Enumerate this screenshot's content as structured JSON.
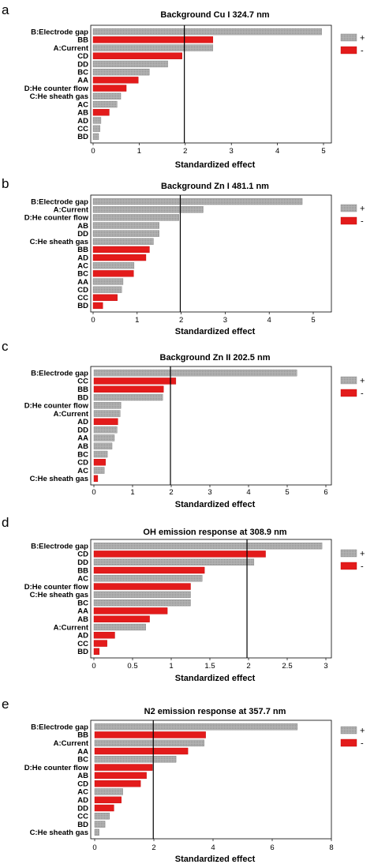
{
  "colors": {
    "positive": "#a9a9a9",
    "negative": "#e31b1b",
    "frame": "#000000"
  },
  "chart_data": [
    {
      "type": "bar",
      "panel_letter": "a",
      "title": "Background Cu I 324.7 nm",
      "xlabel": "Standardized effect",
      "xlim": [
        0,
        5
      ],
      "xticks": [
        0,
        1,
        2,
        3,
        4,
        5
      ],
      "reference_line": 1.98,
      "legend": [
        "+",
        "-"
      ],
      "bars": [
        {
          "label": "B:Electrode gap",
          "value": 4.96,
          "sign": "+"
        },
        {
          "label": "BB",
          "value": 2.6,
          "sign": "-"
        },
        {
          "label": "A:Current",
          "value": 2.6,
          "sign": "+"
        },
        {
          "label": "CD",
          "value": 1.93,
          "sign": "-"
        },
        {
          "label": "DD",
          "value": 1.62,
          "sign": "+"
        },
        {
          "label": "BC",
          "value": 1.22,
          "sign": "+"
        },
        {
          "label": "AA",
          "value": 0.98,
          "sign": "-"
        },
        {
          "label": "D:He counter flow",
          "value": 0.72,
          "sign": "-"
        },
        {
          "label": "C:He sheath gas",
          "value": 0.6,
          "sign": "+"
        },
        {
          "label": "AC",
          "value": 0.52,
          "sign": "+"
        },
        {
          "label": "AB",
          "value": 0.35,
          "sign": "-"
        },
        {
          "label": "AD",
          "value": 0.17,
          "sign": "+"
        },
        {
          "label": "CC",
          "value": 0.15,
          "sign": "+"
        },
        {
          "label": "BD",
          "value": 0.12,
          "sign": "+"
        }
      ]
    },
    {
      "type": "bar",
      "panel_letter": "b",
      "title": "Background Zn I 481.1 nm",
      "xlabel": "Standardized effect",
      "xlim": [
        0,
        5
      ],
      "xticks": [
        0,
        1,
        2,
        3,
        4,
        5
      ],
      "reference_line": 1.98,
      "legend": [
        "+",
        "-"
      ],
      "bars": [
        {
          "label": "B:Electrode gap",
          "value": 4.75,
          "sign": "+"
        },
        {
          "label": "A:Current",
          "value": 2.5,
          "sign": "+"
        },
        {
          "label": "D:He counter flow",
          "value": 1.95,
          "sign": "+"
        },
        {
          "label": "AB",
          "value": 1.5,
          "sign": "+"
        },
        {
          "label": "DD",
          "value": 1.5,
          "sign": "+"
        },
        {
          "label": "C:He sheath gas",
          "value": 1.37,
          "sign": "+"
        },
        {
          "label": "BB",
          "value": 1.28,
          "sign": "-"
        },
        {
          "label": "AD",
          "value": 1.2,
          "sign": "-"
        },
        {
          "label": "AC",
          "value": 0.93,
          "sign": "+"
        },
        {
          "label": "BC",
          "value": 0.92,
          "sign": "-"
        },
        {
          "label": "AA",
          "value": 0.68,
          "sign": "+"
        },
        {
          "label": "CD",
          "value": 0.65,
          "sign": "+"
        },
        {
          "label": "CC",
          "value": 0.55,
          "sign": "-"
        },
        {
          "label": "BD",
          "value": 0.22,
          "sign": "-"
        }
      ]
    },
    {
      "type": "bar",
      "panel_letter": "c",
      "title": "Background Zn II 202.5 nm",
      "xlabel": "Standardized effect",
      "xlim": [
        0,
        6
      ],
      "xticks": [
        0,
        1,
        2,
        3,
        4,
        5,
        6
      ],
      "reference_line": 1.98,
      "legend": [
        "+",
        "-"
      ],
      "bars": [
        {
          "label": "B:Electrode gap",
          "value": 5.25,
          "sign": "+"
        },
        {
          "label": "CC",
          "value": 2.12,
          "sign": "-"
        },
        {
          "label": "BB",
          "value": 1.8,
          "sign": "-"
        },
        {
          "label": "BD",
          "value": 1.78,
          "sign": "+"
        },
        {
          "label": "D:He counter flow",
          "value": 0.7,
          "sign": "+"
        },
        {
          "label": "A:Current",
          "value": 0.68,
          "sign": "+"
        },
        {
          "label": "AD",
          "value": 0.62,
          "sign": "-"
        },
        {
          "label": "DD",
          "value": 0.6,
          "sign": "+"
        },
        {
          "label": "AA",
          "value": 0.53,
          "sign": "+"
        },
        {
          "label": "AB",
          "value": 0.47,
          "sign": "+"
        },
        {
          "label": "BC",
          "value": 0.35,
          "sign": "+"
        },
        {
          "label": "CD",
          "value": 0.3,
          "sign": "-"
        },
        {
          "label": "AC",
          "value": 0.27,
          "sign": "+"
        },
        {
          "label": "C:He sheath gas",
          "value": 0.1,
          "sign": "-"
        }
      ]
    },
    {
      "type": "bar",
      "panel_letter": "d",
      "title": "OH emission response at 308.9 nm",
      "xlabel": "Standardized effect",
      "xlim": [
        0,
        3
      ],
      "xticks": [
        "0",
        "0.5",
        "1",
        "1.5",
        "2",
        "2.5",
        "3"
      ],
      "reference_line": 1.98,
      "legend": [
        "+",
        "-"
      ],
      "bars": [
        {
          "label": "B:Electrode gap",
          "value": 2.95,
          "sign": "+"
        },
        {
          "label": "CD",
          "value": 2.22,
          "sign": "-"
        },
        {
          "label": "DD",
          "value": 2.07,
          "sign": "+"
        },
        {
          "label": "BB",
          "value": 1.43,
          "sign": "-"
        },
        {
          "label": "AC",
          "value": 1.4,
          "sign": "+"
        },
        {
          "label": "D:He counter flow",
          "value": 1.25,
          "sign": "-"
        },
        {
          "label": "C:He sheath gas",
          "value": 1.25,
          "sign": "+"
        },
        {
          "label": "BC",
          "value": 1.25,
          "sign": "+"
        },
        {
          "label": "AA",
          "value": 0.95,
          "sign": "-"
        },
        {
          "label": "AB",
          "value": 0.72,
          "sign": "-"
        },
        {
          "label": "A:Current",
          "value": 0.67,
          "sign": "+"
        },
        {
          "label": "AD",
          "value": 0.27,
          "sign": "-"
        },
        {
          "label": "CC",
          "value": 0.17,
          "sign": "-"
        },
        {
          "label": "BD",
          "value": 0.07,
          "sign": "-"
        }
      ]
    },
    {
      "type": "bar",
      "panel_letter": "e",
      "title": "N2 emission response at 357.7 nm",
      "xlabel": "Standardized effect",
      "xlim": [
        0,
        8
      ],
      "xticks": [
        0,
        2,
        4,
        6,
        8
      ],
      "reference_line": 1.98,
      "legend": [
        "+",
        "-"
      ],
      "bars": [
        {
          "label": "B:Electrode gap",
          "value": 6.85,
          "sign": "+"
        },
        {
          "label": "BB",
          "value": 3.75,
          "sign": "-"
        },
        {
          "label": "A:Current",
          "value": 3.7,
          "sign": "+"
        },
        {
          "label": "AA",
          "value": 3.15,
          "sign": "-"
        },
        {
          "label": "BC",
          "value": 2.75,
          "sign": "+"
        },
        {
          "label": "D:He counter flow",
          "value": 1.95,
          "sign": "-"
        },
        {
          "label": "AB",
          "value": 1.75,
          "sign": "-"
        },
        {
          "label": "CD",
          "value": 1.55,
          "sign": "-"
        },
        {
          "label": "AC",
          "value": 0.95,
          "sign": "+"
        },
        {
          "label": "AD",
          "value": 0.9,
          "sign": "-"
        },
        {
          "label": "DD",
          "value": 0.65,
          "sign": "-"
        },
        {
          "label": "CC",
          "value": 0.5,
          "sign": "+"
        },
        {
          "label": "BD",
          "value": 0.35,
          "sign": "+"
        },
        {
          "label": "C:He sheath gas",
          "value": 0.15,
          "sign": "+"
        }
      ]
    }
  ]
}
